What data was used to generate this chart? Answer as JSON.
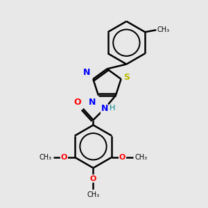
{
  "background_color": "#e8e8e8",
  "bond_color": "#000000",
  "N_color": "#0000ff",
  "O_color": "#ff0000",
  "S_color": "#bbbb00",
  "H_color": "#008888",
  "line_width": 1.8,
  "figsize": [
    3.0,
    3.0
  ],
  "dpi": 100,
  "xlim": [
    0,
    10
  ],
  "ylim": [
    0,
    10
  ]
}
